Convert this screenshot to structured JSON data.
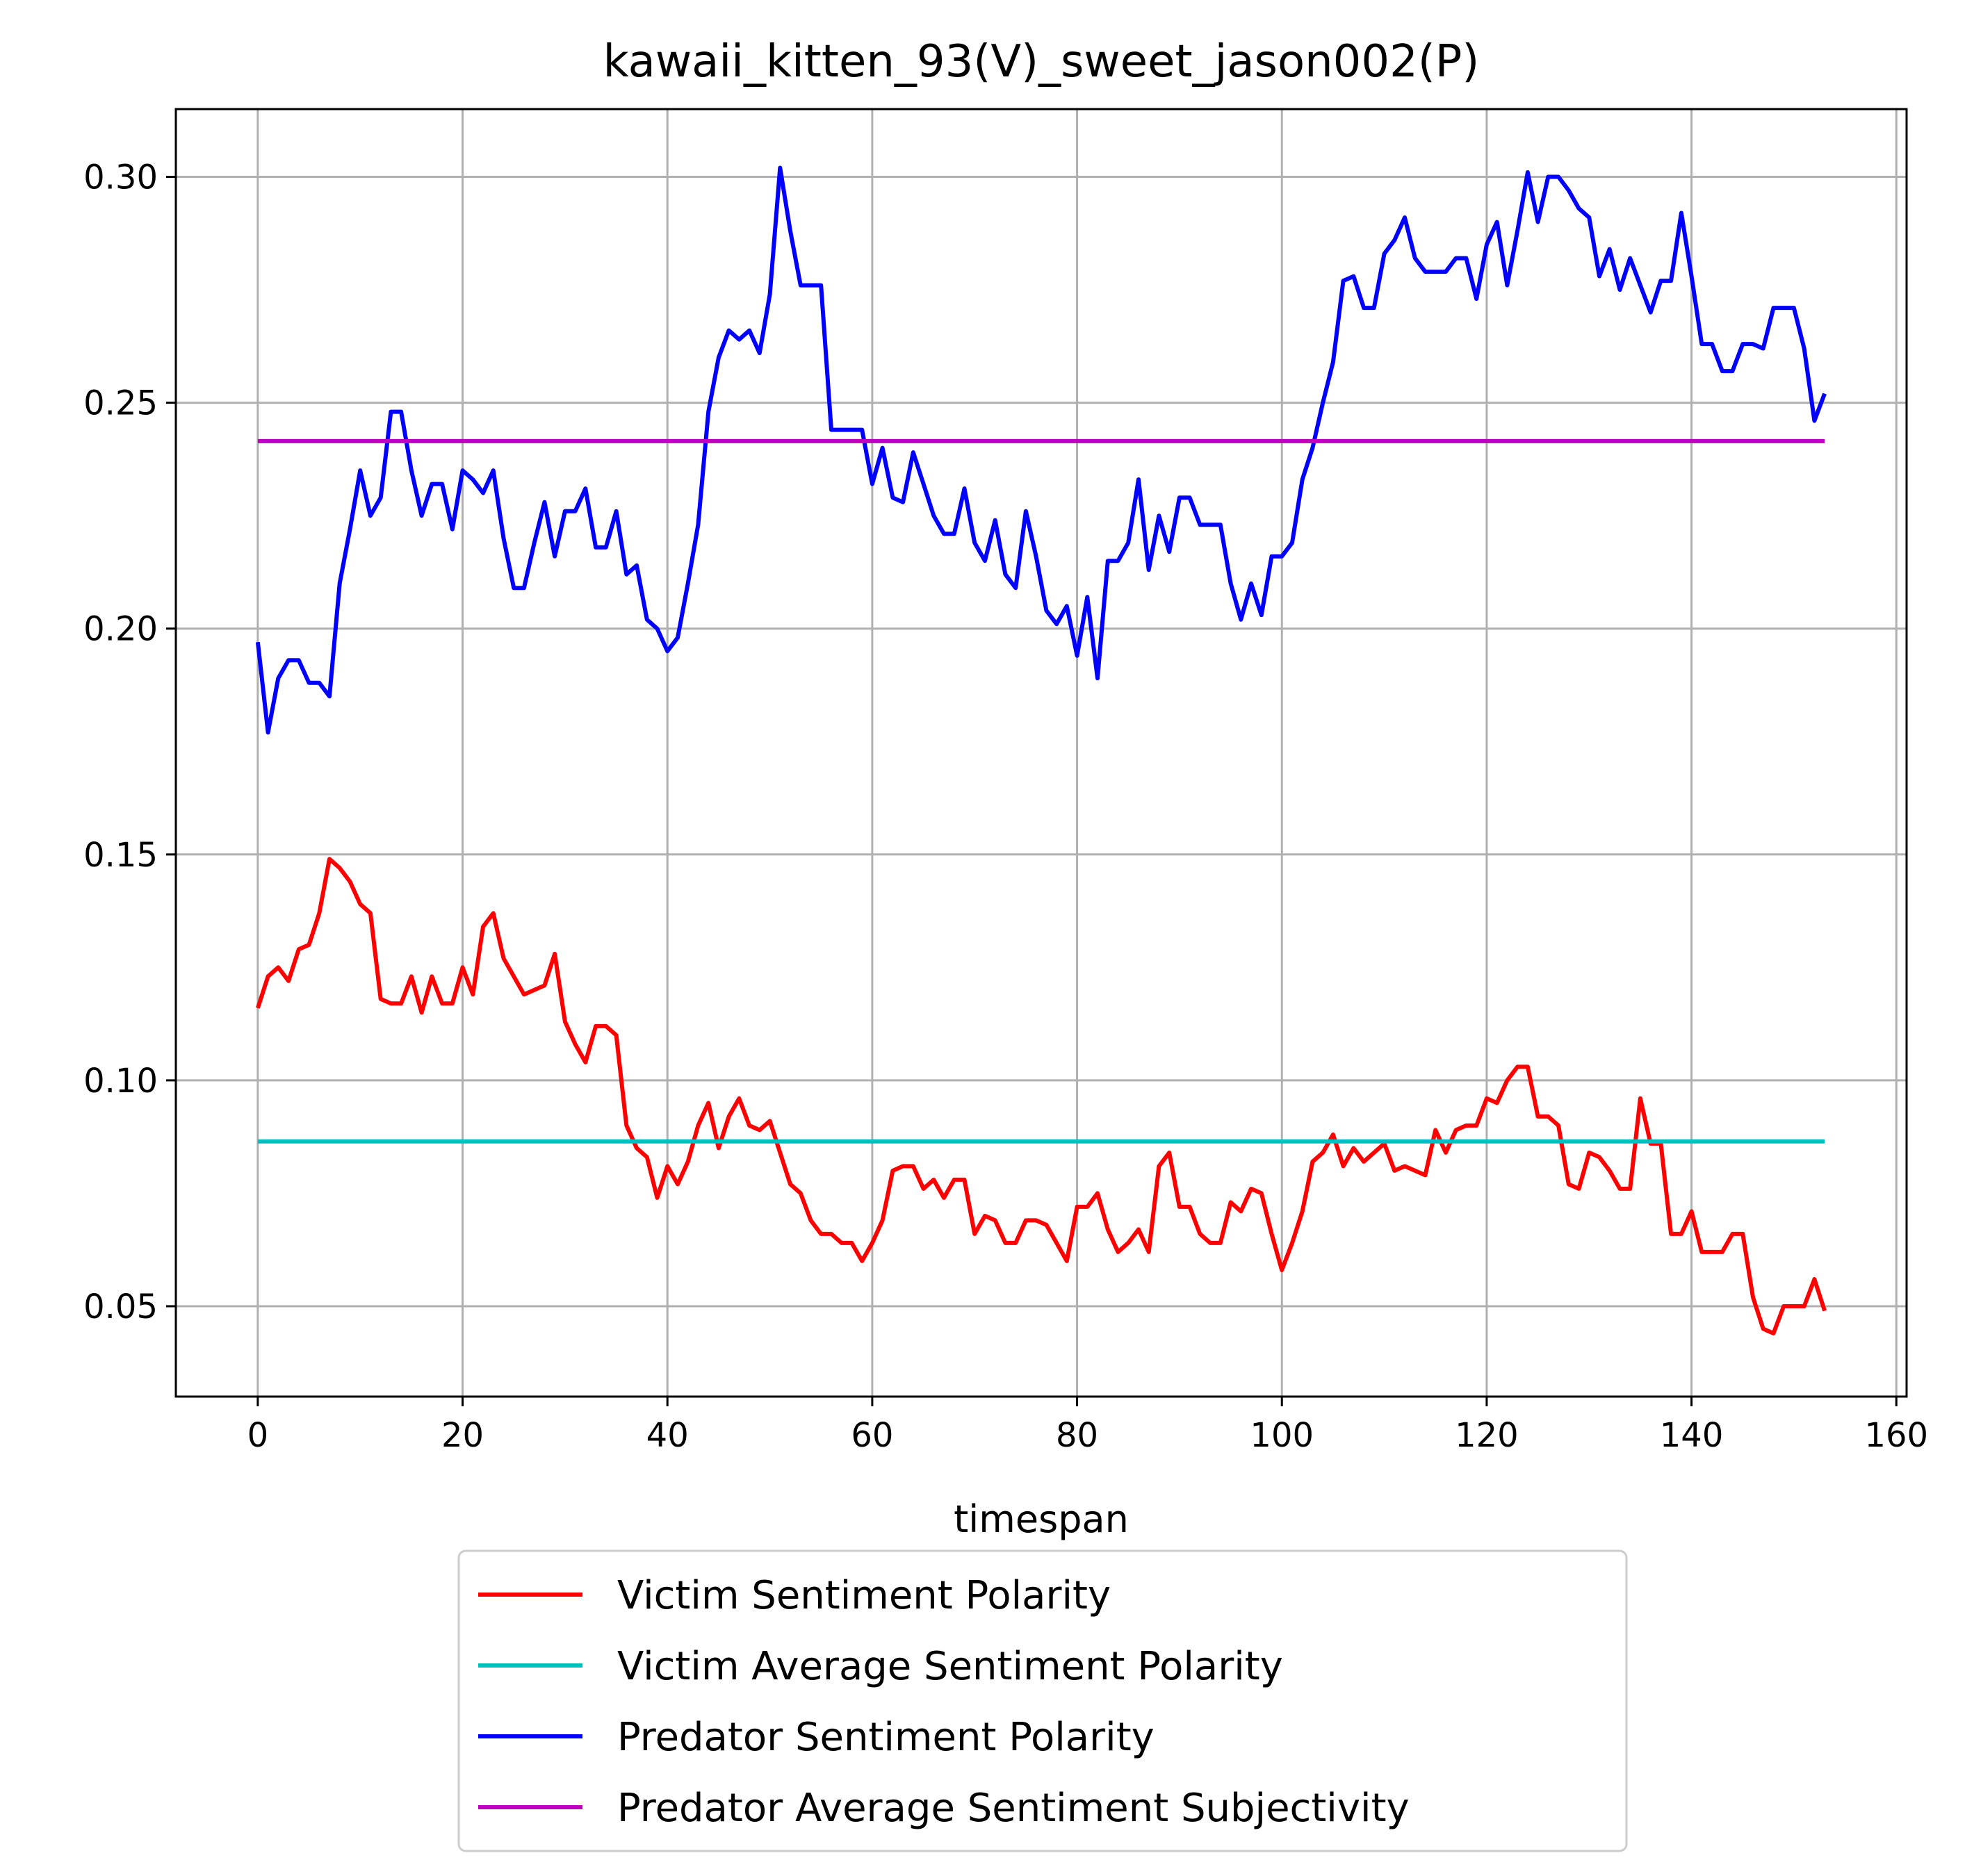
{
  "chart_data": {
    "type": "line",
    "title": "kawaii_kitten_93(V)_sweet_jason002(P)",
    "xlabel": "timespan",
    "ylabel": "",
    "xlim": [
      -8,
      161
    ],
    "ylim": [
      0.03,
      0.315
    ],
    "xticks": [
      0,
      20,
      40,
      60,
      80,
      100,
      120,
      140,
      160
    ],
    "xtick_labels": [
      "0",
      "20",
      "40",
      "60",
      "80",
      "100",
      "120",
      "140",
      "160"
    ],
    "yticks": [
      0.05,
      0.1,
      0.15,
      0.2,
      0.25,
      0.3
    ],
    "ytick_labels": [
      "0.05",
      "0.10",
      "0.15",
      "0.20",
      "0.25",
      "0.30"
    ],
    "grid": true,
    "legend_position": "below-center",
    "series": [
      {
        "name": "Victim Sentiment Polarity",
        "color": "#ff0000",
        "values": [
          0.116,
          0.123,
          0.125,
          0.122,
          0.129,
          0.13,
          0.137,
          0.149,
          0.147,
          0.144,
          0.139,
          0.137,
          0.118,
          0.117,
          0.117,
          0.123,
          0.115,
          0.123,
          0.117,
          0.117,
          0.125,
          0.119,
          0.134,
          0.137,
          0.127,
          0.123,
          0.119,
          0.12,
          0.121,
          0.128,
          0.113,
          0.108,
          0.104,
          0.112,
          0.112,
          0.11,
          0.09,
          0.085,
          0.083,
          0.074,
          0.081,
          0.077,
          0.082,
          0.09,
          0.095,
          0.085,
          0.092,
          0.096,
          0.09,
          0.089,
          0.091,
          0.084,
          0.077,
          0.075,
          0.069,
          0.066,
          0.066,
          0.064,
          0.064,
          0.06,
          0.064,
          0.069,
          0.08,
          0.081,
          0.081,
          0.076,
          0.078,
          0.074,
          0.078,
          0.078,
          0.066,
          0.07,
          0.069,
          0.064,
          0.064,
          0.069,
          0.069,
          0.068,
          0.064,
          0.06,
          0.072,
          0.072,
          0.075,
          0.067,
          0.062,
          0.064,
          0.067,
          0.062,
          0.081,
          0.084,
          0.072,
          0.072,
          0.066,
          0.064,
          0.064,
          0.073,
          0.071,
          0.076,
          0.075,
          0.066,
          0.058,
          0.064,
          0.071,
          0.082,
          0.084,
          0.088,
          0.081,
          0.085,
          0.082,
          0.084,
          0.086,
          0.08,
          0.081,
          0.08,
          0.079,
          0.089,
          0.084,
          0.089,
          0.09,
          0.09,
          0.096,
          0.095,
          0.1,
          0.103,
          0.103,
          0.092,
          0.092,
          0.09,
          0.077,
          0.076,
          0.084,
          0.083,
          0.08,
          0.076,
          0.076,
          0.096,
          0.086,
          0.086,
          0.066,
          0.066,
          0.071,
          0.062,
          0.062,
          0.062,
          0.066,
          0.066,
          0.052,
          0.045,
          0.044,
          0.05,
          0.05,
          0.05,
          0.056,
          0.049
        ]
      },
      {
        "name": "Victim Average Sentiment Polarity",
        "color": "#00bfbf",
        "constant": 0.0865
      },
      {
        "name": "Predator Sentiment Polarity",
        "color": "#0000ff",
        "values": [
          0.197,
          0.177,
          0.189,
          0.193,
          0.193,
          0.188,
          0.188,
          0.185,
          0.21,
          0.222,
          0.235,
          0.225,
          0.229,
          0.248,
          0.248,
          0.235,
          0.225,
          0.232,
          0.232,
          0.222,
          0.235,
          0.233,
          0.23,
          0.235,
          0.22,
          0.209,
          0.209,
          0.219,
          0.228,
          0.216,
          0.226,
          0.226,
          0.231,
          0.218,
          0.218,
          0.226,
          0.212,
          0.214,
          0.202,
          0.2,
          0.195,
          0.198,
          0.21,
          0.223,
          0.248,
          0.26,
          0.266,
          0.264,
          0.266,
          0.261,
          0.274,
          0.302,
          0.288,
          0.276,
          0.276,
          0.276,
          0.244,
          0.244,
          0.244,
          0.244,
          0.232,
          0.24,
          0.229,
          0.228,
          0.239,
          0.232,
          0.225,
          0.221,
          0.221,
          0.231,
          0.219,
          0.215,
          0.224,
          0.212,
          0.209,
          0.226,
          0.216,
          0.204,
          0.201,
          0.205,
          0.194,
          0.207,
          0.189,
          0.215,
          0.215,
          0.219,
          0.233,
          0.213,
          0.225,
          0.217,
          0.229,
          0.229,
          0.223,
          0.223,
          0.223,
          0.21,
          0.202,
          0.21,
          0.203,
          0.216,
          0.216,
          0.219,
          0.233,
          0.24,
          0.25,
          0.259,
          0.277,
          0.278,
          0.271,
          0.271,
          0.283,
          0.286,
          0.291,
          0.282,
          0.279,
          0.279,
          0.279,
          0.282,
          0.282,
          0.273,
          0.285,
          0.29,
          0.276,
          0.288,
          0.301,
          0.29,
          0.3,
          0.3,
          0.297,
          0.293,
          0.291,
          0.278,
          0.284,
          0.275,
          0.282,
          0.276,
          0.27,
          0.277,
          0.277,
          0.292,
          0.278,
          0.263,
          0.263,
          0.257,
          0.257,
          0.263,
          0.263,
          0.262,
          0.271,
          0.271,
          0.271,
          0.262,
          0.246,
          0.252
        ]
      },
      {
        "name": "Predator Average Sentiment Subjectivity",
        "color": "#bf00bf",
        "constant": 0.2415
      }
    ]
  }
}
